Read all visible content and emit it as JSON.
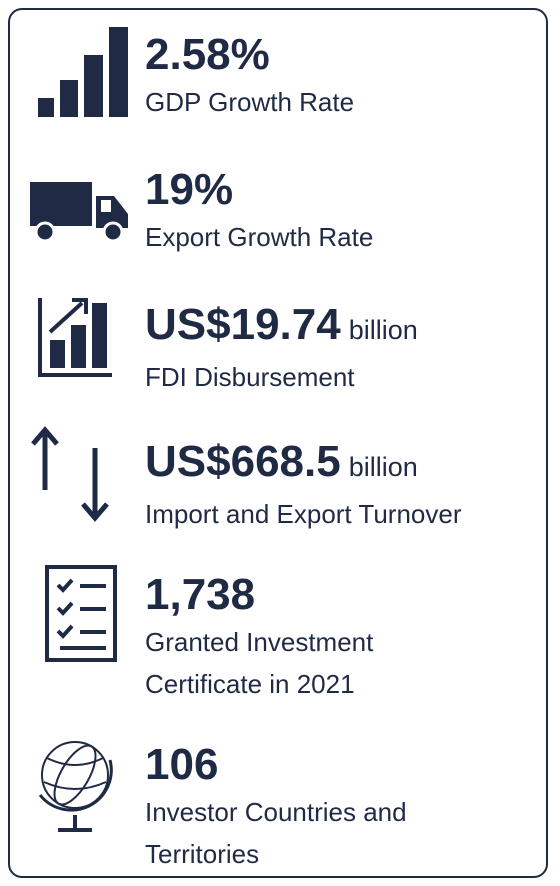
{
  "items": [
    {
      "value": "2.58%",
      "label_lines": [
        "GDP Growth Rate"
      ]
    },
    {
      "value": "19%",
      "label_lines": [
        "Export Growth Rate"
      ]
    },
    {
      "value": "US$19.74",
      "unit": "billion",
      "label_lines": [
        "FDI Disbursement"
      ]
    },
    {
      "value": "US$668.5",
      "unit": "billion",
      "label_lines": [
        "Import and Export Turnover"
      ]
    },
    {
      "value": "1,738",
      "label_lines": [
        "Granted Investment",
        "Certificate in 2021"
      ]
    },
    {
      "value": "106",
      "label_lines": [
        "Investor Countries and",
        "Territories"
      ]
    }
  ]
}
